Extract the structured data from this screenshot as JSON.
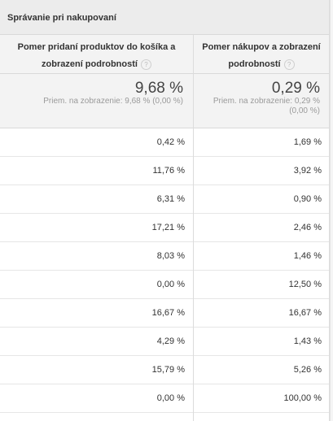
{
  "header": {
    "section_title": "Správanie pri nakupovaní",
    "col1_title_line1": "Pomer pridaní produktov do košíka a",
    "col1_title_line2": "zobrazení podrobností",
    "col2_title_line1": "Pomer nákupov a zobrazení",
    "col2_title_line2": "podrobností",
    "help_glyph": "?"
  },
  "summary": {
    "col1_value": "9,68 %",
    "col1_avg": "Priem. na zobrazenie: 9,68 % (0,00 %)",
    "col2_value": "0,29 %",
    "col2_avg_line1": "Priem. na zobrazenie: 0,29 %",
    "col2_avg_line2": "(0,00 %)"
  },
  "rows": [
    {
      "c1": "0,42 %",
      "c2": "1,69 %"
    },
    {
      "c1": "11,76 %",
      "c2": "3,92 %"
    },
    {
      "c1": "6,31 %",
      "c2": "0,90 %"
    },
    {
      "c1": "17,21 %",
      "c2": "2,46 %"
    },
    {
      "c1": "8,03 %",
      "c2": "1,46 %"
    },
    {
      "c1": "0,00 %",
      "c2": "12,50 %"
    },
    {
      "c1": "16,67 %",
      "c2": "16,67 %"
    },
    {
      "c1": "4,29 %",
      "c2": "1,43 %"
    },
    {
      "c1": "15,79 %",
      "c2": "5,26 %"
    },
    {
      "c1": "0,00 %",
      "c2": "100,00 %"
    }
  ]
}
